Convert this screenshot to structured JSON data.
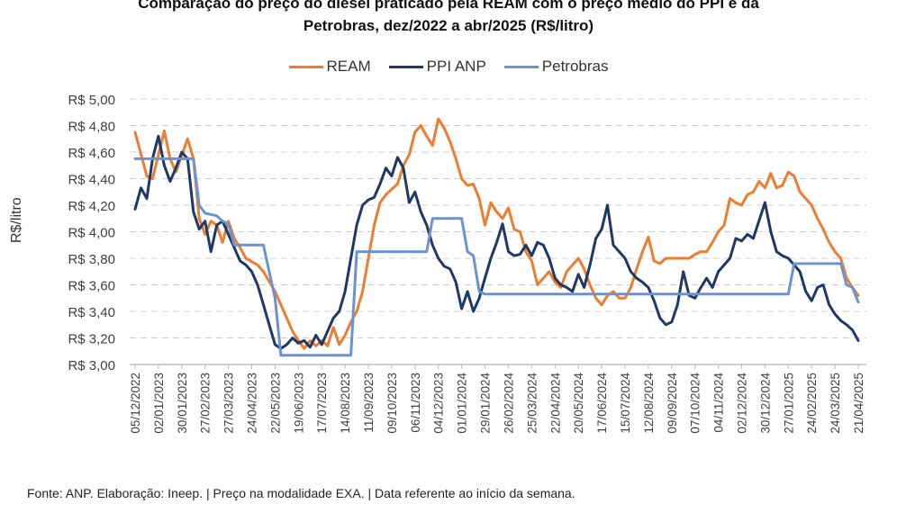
{
  "chart_data": {
    "type": "line",
    "title_line1": "Comparação do preço do diesel praticado pela REAM com o preço médio do PPI e da",
    "title_line2": "Petrobras, dez/2022 a abr/2025 (R$/litro)",
    "xlabel": "",
    "ylabel": "R$/litro",
    "ylim": [
      3.0,
      5.0
    ],
    "yticks": [
      3.0,
      3.2,
      3.4,
      3.6,
      3.8,
      4.0,
      4.2,
      4.4,
      4.6,
      4.8,
      5.0
    ],
    "ytick_labels": [
      "R$ 3,00",
      "R$ 3,20",
      "R$ 3,40",
      "R$ 3,60",
      "R$ 3,80",
      "R$ 4,00",
      "R$ 4,20",
      "R$ 4,40",
      "R$ 4,60",
      "R$ 4,80",
      "R$ 5,00"
    ],
    "grid": true,
    "legend_position": "top",
    "x_unit": "week index (weekly data starting 05/12/2022)",
    "x_range": [
      0,
      124
    ],
    "xtick_step_weeks": 4,
    "xtick_labels": [
      "05/12/2022",
      "02/01/2023",
      "30/01/2023",
      "27/02/2023",
      "27/03/2023",
      "24/04/2023",
      "22/05/2023",
      "19/06/2023",
      "17/07/2023",
      "14/08/2023",
      "11/09/2023",
      "09/10/2023",
      "06/11/2023",
      "04/12/2023",
      "01/01/2024",
      "29/01/2024",
      "26/02/2024",
      "25/03/2024",
      "22/04/2024",
      "20/05/2024",
      "17/06/2024",
      "15/07/2024",
      "12/08/2024",
      "09/09/2024",
      "07/10/2024",
      "04/11/2024",
      "02/12/2024",
      "30/12/2024",
      "27/01/2025",
      "24/02/2025",
      "24/03/2025",
      "21/04/2025"
    ],
    "series": [
      {
        "name": "REAM",
        "color": "#ED7D31",
        "points": [
          [
            0,
            4.75
          ],
          [
            2,
            4.42
          ],
          [
            3,
            4.4
          ],
          [
            5,
            4.76
          ],
          [
            6,
            4.55
          ],
          [
            7,
            4.45
          ],
          [
            9,
            4.7
          ],
          [
            10,
            4.55
          ],
          [
            11,
            4.1
          ],
          [
            12,
            3.98
          ],
          [
            13,
            4.08
          ],
          [
            14,
            4.05
          ],
          [
            15,
            3.92
          ],
          [
            16,
            4.08
          ],
          [
            17,
            3.95
          ],
          [
            18,
            3.88
          ],
          [
            19,
            3.8
          ],
          [
            21,
            3.75
          ],
          [
            22,
            3.7
          ],
          [
            24,
            3.55
          ],
          [
            25,
            3.45
          ],
          [
            26,
            3.35
          ],
          [
            27,
            3.25
          ],
          [
            28,
            3.18
          ],
          [
            29,
            3.12
          ],
          [
            30,
            3.18
          ],
          [
            31,
            3.14
          ],
          [
            32,
            3.18
          ],
          [
            33,
            3.14
          ],
          [
            34,
            3.28
          ],
          [
            35,
            3.15
          ],
          [
            36,
            3.22
          ],
          [
            37,
            3.32
          ],
          [
            38,
            3.4
          ],
          [
            39,
            3.55
          ],
          [
            40,
            3.8
          ],
          [
            41,
            4.05
          ],
          [
            42,
            4.22
          ],
          [
            43,
            4.28
          ],
          [
            44,
            4.32
          ],
          [
            45,
            4.36
          ],
          [
            46,
            4.5
          ],
          [
            47,
            4.58
          ],
          [
            48,
            4.75
          ],
          [
            49,
            4.8
          ],
          [
            50,
            4.72
          ],
          [
            51,
            4.65
          ],
          [
            52,
            4.85
          ],
          [
            53,
            4.78
          ],
          [
            54,
            4.68
          ],
          [
            55,
            4.55
          ],
          [
            56,
            4.4
          ],
          [
            57,
            4.35
          ],
          [
            58,
            4.36
          ],
          [
            59,
            4.25
          ],
          [
            60,
            4.05
          ],
          [
            61,
            4.22
          ],
          [
            62,
            4.15
          ],
          [
            63,
            4.1
          ],
          [
            64,
            4.18
          ],
          [
            65,
            4.02
          ],
          [
            66,
            4.0
          ],
          [
            67,
            3.85
          ],
          [
            68,
            3.78
          ],
          [
            69,
            3.6
          ],
          [
            70,
            3.65
          ],
          [
            71,
            3.7
          ],
          [
            72,
            3.62
          ],
          [
            73,
            3.58
          ],
          [
            74,
            3.7
          ],
          [
            75,
            3.75
          ],
          [
            76,
            3.8
          ],
          [
            77,
            3.72
          ],
          [
            78,
            3.6
          ],
          [
            79,
            3.5
          ],
          [
            80,
            3.45
          ],
          [
            81,
            3.52
          ],
          [
            82,
            3.55
          ],
          [
            83,
            3.5
          ],
          [
            84,
            3.5
          ],
          [
            85,
            3.58
          ],
          [
            86,
            3.72
          ],
          [
            87,
            3.85
          ],
          [
            88,
            3.96
          ],
          [
            89,
            3.78
          ],
          [
            90,
            3.76
          ],
          [
            91,
            3.8
          ],
          [
            93,
            3.8
          ],
          [
            95,
            3.8
          ],
          [
            96,
            3.83
          ],
          [
            97,
            3.85
          ],
          [
            98,
            3.85
          ],
          [
            99,
            3.92
          ],
          [
            100,
            4.0
          ],
          [
            101,
            4.05
          ],
          [
            102,
            4.25
          ],
          [
            103,
            4.22
          ],
          [
            104,
            4.2
          ],
          [
            105,
            4.28
          ],
          [
            106,
            4.3
          ],
          [
            107,
            4.38
          ],
          [
            108,
            4.33
          ],
          [
            109,
            4.44
          ],
          [
            110,
            4.33
          ],
          [
            111,
            4.35
          ],
          [
            112,
            4.45
          ],
          [
            113,
            4.42
          ],
          [
            114,
            4.3
          ],
          [
            115,
            4.25
          ],
          [
            116,
            4.2
          ],
          [
            117,
            4.1
          ],
          [
            118,
            4.02
          ],
          [
            119,
            3.92
          ],
          [
            120,
            3.85
          ],
          [
            121,
            3.8
          ],
          [
            122,
            3.65
          ],
          [
            123,
            3.58
          ],
          [
            124,
            3.52
          ]
        ]
      },
      {
        "name": "PPI ANP",
        "color": "#1F3864",
        "points": [
          [
            0,
            4.17
          ],
          [
            1,
            4.33
          ],
          [
            2,
            4.25
          ],
          [
            3,
            4.55
          ],
          [
            4,
            4.72
          ],
          [
            5,
            4.5
          ],
          [
            6,
            4.38
          ],
          [
            7,
            4.48
          ],
          [
            8,
            4.6
          ],
          [
            9,
            4.55
          ],
          [
            10,
            4.15
          ],
          [
            11,
            4.02
          ],
          [
            12,
            4.08
          ],
          [
            13,
            3.85
          ],
          [
            14,
            4.05
          ],
          [
            15,
            4.08
          ],
          [
            16,
            3.98
          ],
          [
            17,
            3.88
          ],
          [
            18,
            3.78
          ],
          [
            19,
            3.75
          ],
          [
            20,
            3.7
          ],
          [
            21,
            3.6
          ],
          [
            22,
            3.45
          ],
          [
            23,
            3.3
          ],
          [
            24,
            3.15
          ],
          [
            25,
            3.12
          ],
          [
            26,
            3.15
          ],
          [
            27,
            3.2
          ],
          [
            28,
            3.16
          ],
          [
            29,
            3.18
          ],
          [
            30,
            3.13
          ],
          [
            31,
            3.22
          ],
          [
            32,
            3.15
          ],
          [
            33,
            3.25
          ],
          [
            34,
            3.35
          ],
          [
            35,
            3.4
          ],
          [
            36,
            3.55
          ],
          [
            37,
            3.8
          ],
          [
            38,
            4.05
          ],
          [
            39,
            4.2
          ],
          [
            40,
            4.24
          ],
          [
            41,
            4.26
          ],
          [
            42,
            4.36
          ],
          [
            43,
            4.48
          ],
          [
            44,
            4.42
          ],
          [
            45,
            4.56
          ],
          [
            46,
            4.48
          ],
          [
            47,
            4.22
          ],
          [
            48,
            4.3
          ],
          [
            49,
            4.15
          ],
          [
            50,
            4.05
          ],
          [
            51,
            3.9
          ],
          [
            52,
            3.8
          ],
          [
            53,
            3.74
          ],
          [
            54,
            3.72
          ],
          [
            55,
            3.62
          ],
          [
            56,
            3.42
          ],
          [
            57,
            3.55
          ],
          [
            58,
            3.4
          ],
          [
            59,
            3.5
          ],
          [
            60,
            3.65
          ],
          [
            61,
            3.8
          ],
          [
            62,
            3.92
          ],
          [
            63,
            4.06
          ],
          [
            64,
            3.85
          ],
          [
            65,
            3.82
          ],
          [
            66,
            3.83
          ],
          [
            67,
            3.9
          ],
          [
            68,
            3.82
          ],
          [
            69,
            3.92
          ],
          [
            70,
            3.9
          ],
          [
            71,
            3.8
          ],
          [
            72,
            3.65
          ],
          [
            73,
            3.6
          ],
          [
            74,
            3.58
          ],
          [
            75,
            3.55
          ],
          [
            76,
            3.68
          ],
          [
            77,
            3.58
          ],
          [
            78,
            3.75
          ],
          [
            79,
            3.95
          ],
          [
            80,
            4.02
          ],
          [
            81,
            4.2
          ],
          [
            82,
            3.9
          ],
          [
            83,
            3.85
          ],
          [
            84,
            3.8
          ],
          [
            85,
            3.7
          ],
          [
            86,
            3.65
          ],
          [
            87,
            3.62
          ],
          [
            88,
            3.58
          ],
          [
            89,
            3.48
          ],
          [
            90,
            3.35
          ],
          [
            91,
            3.3
          ],
          [
            92,
            3.32
          ],
          [
            93,
            3.45
          ],
          [
            94,
            3.7
          ],
          [
            95,
            3.52
          ],
          [
            96,
            3.5
          ],
          [
            97,
            3.58
          ],
          [
            98,
            3.65
          ],
          [
            99,
            3.58
          ],
          [
            100,
            3.7
          ],
          [
            101,
            3.75
          ],
          [
            102,
            3.8
          ],
          [
            103,
            3.95
          ],
          [
            104,
            3.93
          ],
          [
            105,
            3.98
          ],
          [
            106,
            3.95
          ],
          [
            108,
            4.22
          ],
          [
            109,
            4.0
          ],
          [
            110,
            3.85
          ],
          [
            111,
            3.82
          ],
          [
            112,
            3.8
          ],
          [
            113,
            3.75
          ],
          [
            114,
            3.7
          ],
          [
            115,
            3.55
          ],
          [
            116,
            3.48
          ],
          [
            117,
            3.58
          ],
          [
            118,
            3.6
          ],
          [
            119,
            3.45
          ],
          [
            120,
            3.38
          ],
          [
            121,
            3.33
          ],
          [
            122,
            3.3
          ],
          [
            123,
            3.26
          ],
          [
            124,
            3.18
          ]
        ]
      },
      {
        "name": "Petrobras",
        "color": "#6A93D4",
        "points": [
          [
            0,
            4.55
          ],
          [
            10,
            4.55
          ],
          [
            11,
            4.2
          ],
          [
            12,
            4.14
          ],
          [
            14,
            4.12
          ],
          [
            15,
            4.08
          ],
          [
            16,
            4.06
          ],
          [
            17,
            3.9
          ],
          [
            22,
            3.9
          ],
          [
            23,
            3.7
          ],
          [
            24,
            3.5
          ],
          [
            25,
            3.07
          ],
          [
            37,
            3.07
          ],
          [
            38,
            3.85
          ],
          [
            50,
            3.85
          ],
          [
            51,
            4.1
          ],
          [
            56,
            4.1
          ],
          [
            57,
            3.85
          ],
          [
            58,
            3.82
          ],
          [
            59,
            3.55
          ],
          [
            60,
            3.53
          ],
          [
            112,
            3.53
          ],
          [
            113,
            3.76
          ],
          [
            121,
            3.76
          ],
          [
            122,
            3.6
          ],
          [
            123,
            3.58
          ],
          [
            124,
            3.47
          ]
        ]
      }
    ]
  },
  "footer": "Fonte: ANP. Elaboração: Ineep. | Preço na modalidade EXA.  |  Data referente ao início da semana."
}
